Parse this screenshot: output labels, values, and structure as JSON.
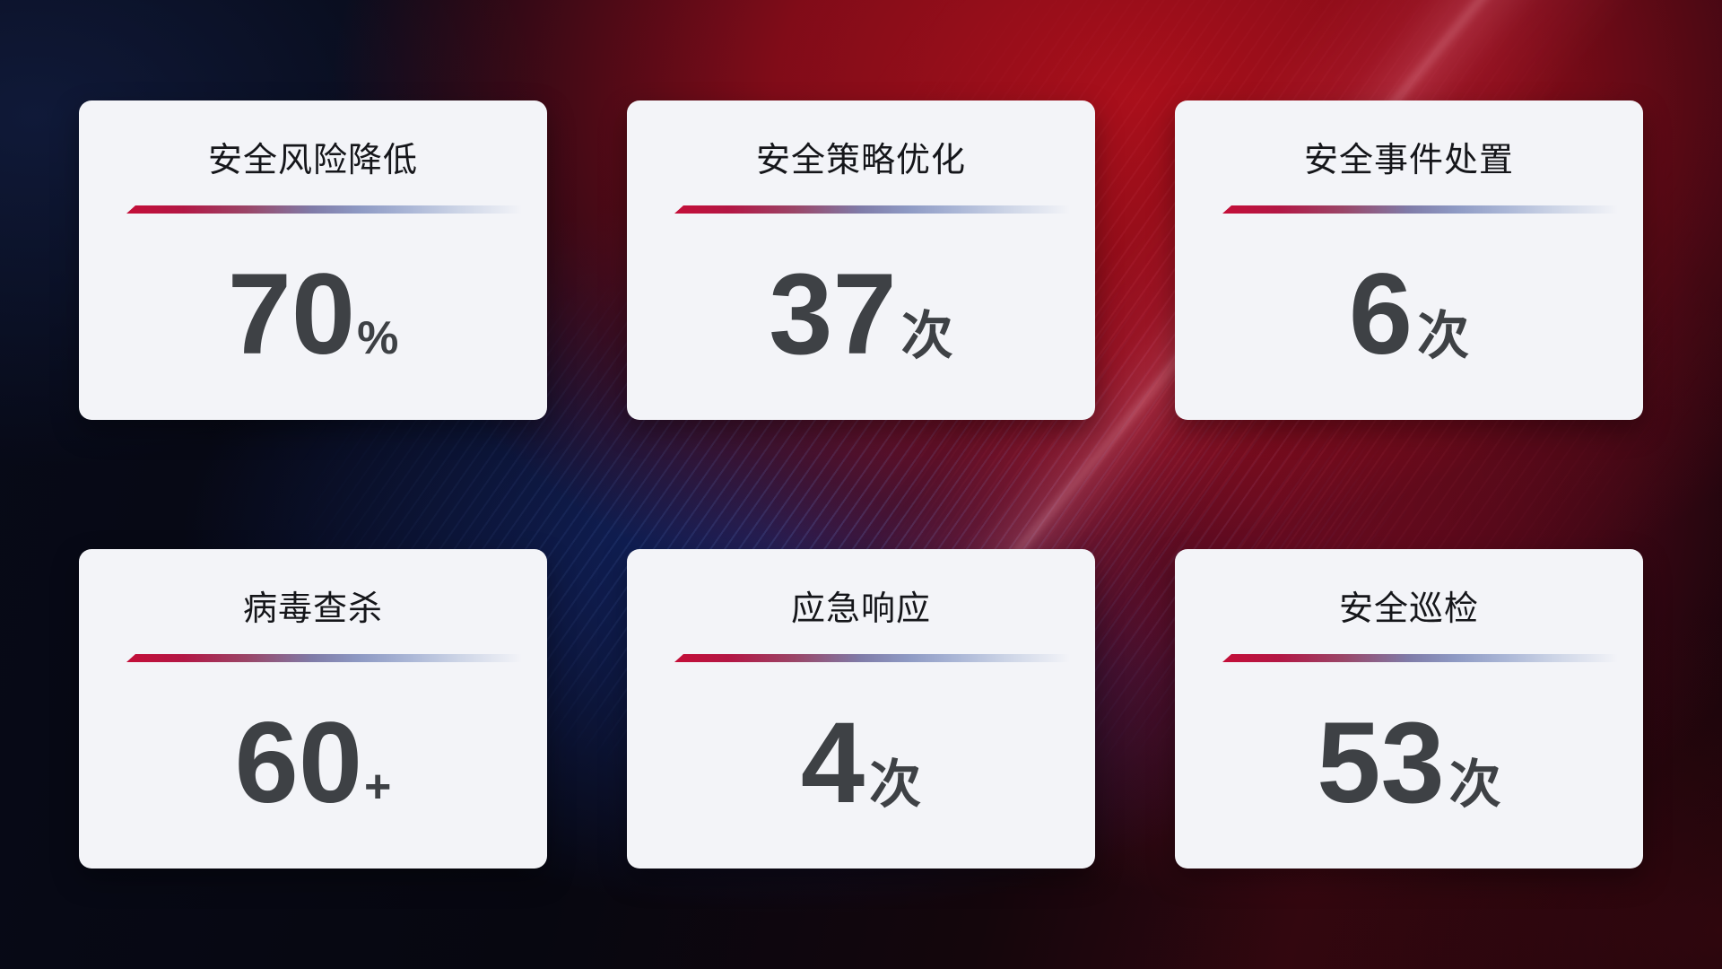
{
  "metrics": [
    {
      "title": "安全风险降低",
      "value": "70",
      "unit": "%"
    },
    {
      "title": "安全策略优化",
      "value": "37",
      "unit": "次"
    },
    {
      "title": "安全事件处置",
      "value": "6",
      "unit": "次"
    },
    {
      "title": "病毒查杀",
      "value": "60",
      "unit": "+"
    },
    {
      "title": "应急响应",
      "value": "4",
      "unit": "次"
    },
    {
      "title": "安全巡检",
      "value": "53",
      "unit": "次"
    }
  ],
  "colors": {
    "card_background": "#f3f4f8",
    "title_text": "#15161a",
    "value_text": "#3e4145",
    "line_red": "#c40e38",
    "line_blue": "#8e9ac4",
    "bg_navy": "#0a1330",
    "bg_blue": "#13276d",
    "bg_red": "#8e1014"
  }
}
